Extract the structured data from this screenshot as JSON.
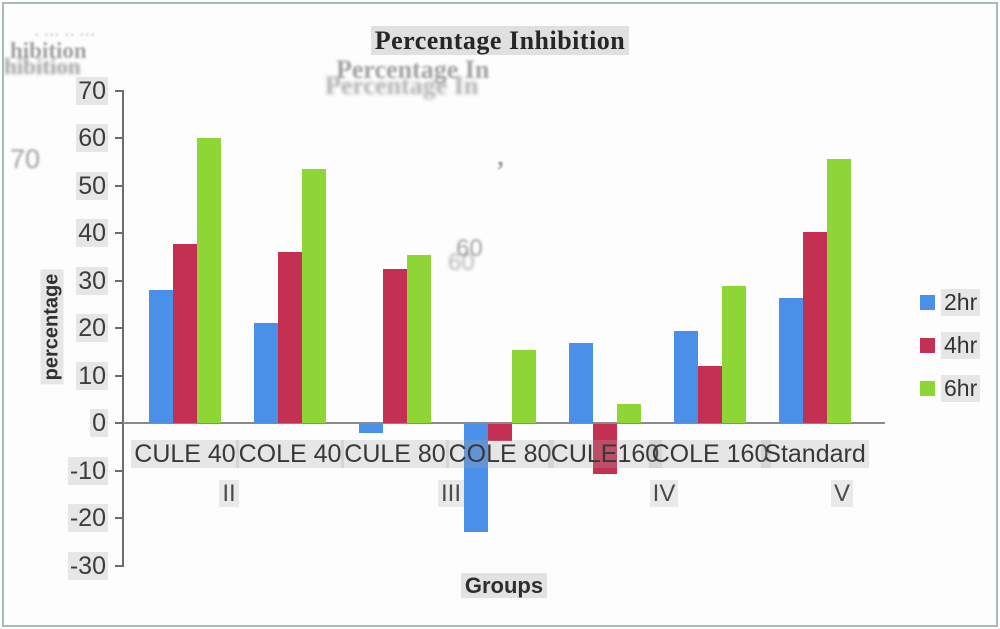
{
  "chart_data": {
    "type": "bar",
    "title": "Percentage Inhibition",
    "xlabel": "Groups",
    "ylabel": "percentage",
    "ylim": [
      -30,
      70
    ],
    "ytick_step": 10,
    "grid": false,
    "legend_position": "right",
    "categories": [
      "CULE 40",
      "COLE 40",
      "CULE 80",
      "COLE 80",
      "CULE160",
      "COLE 160",
      "Standard"
    ],
    "group_labels": [
      "II",
      "III",
      "IV",
      "V"
    ],
    "series": [
      {
        "name": "2hr",
        "color": "#4a90e8",
        "values": [
          28,
          21,
          -1.8,
          -22.8,
          16.8,
          19.4,
          26.3
        ]
      },
      {
        "name": "4hr",
        "color": "#c43051",
        "values": [
          37.8,
          36,
          32.4,
          -3.5,
          -10.5,
          12,
          40.2
        ]
      },
      {
        "name": "6hr",
        "color": "#8ed636",
        "values": [
          60,
          53.5,
          35.4,
          15.4,
          4,
          28.8,
          55.6
        ]
      }
    ]
  },
  "colors": {
    "axis": "#6d6d6d",
    "baseline": "#8a8a8a",
    "border": "#a9baba"
  },
  "artifacts": {
    "ghost_dots": "· ··· ·· ···",
    "ghost_left_1": "hibition",
    "ghost_left_2": "hibition",
    "ghost_70": "70",
    "ghost_title_1": "Percentage In",
    "ghost_title_2": "Percentage In",
    "ghost_60_a": "60",
    "ghost_60_b": "60",
    "ghost_comma": "’"
  }
}
